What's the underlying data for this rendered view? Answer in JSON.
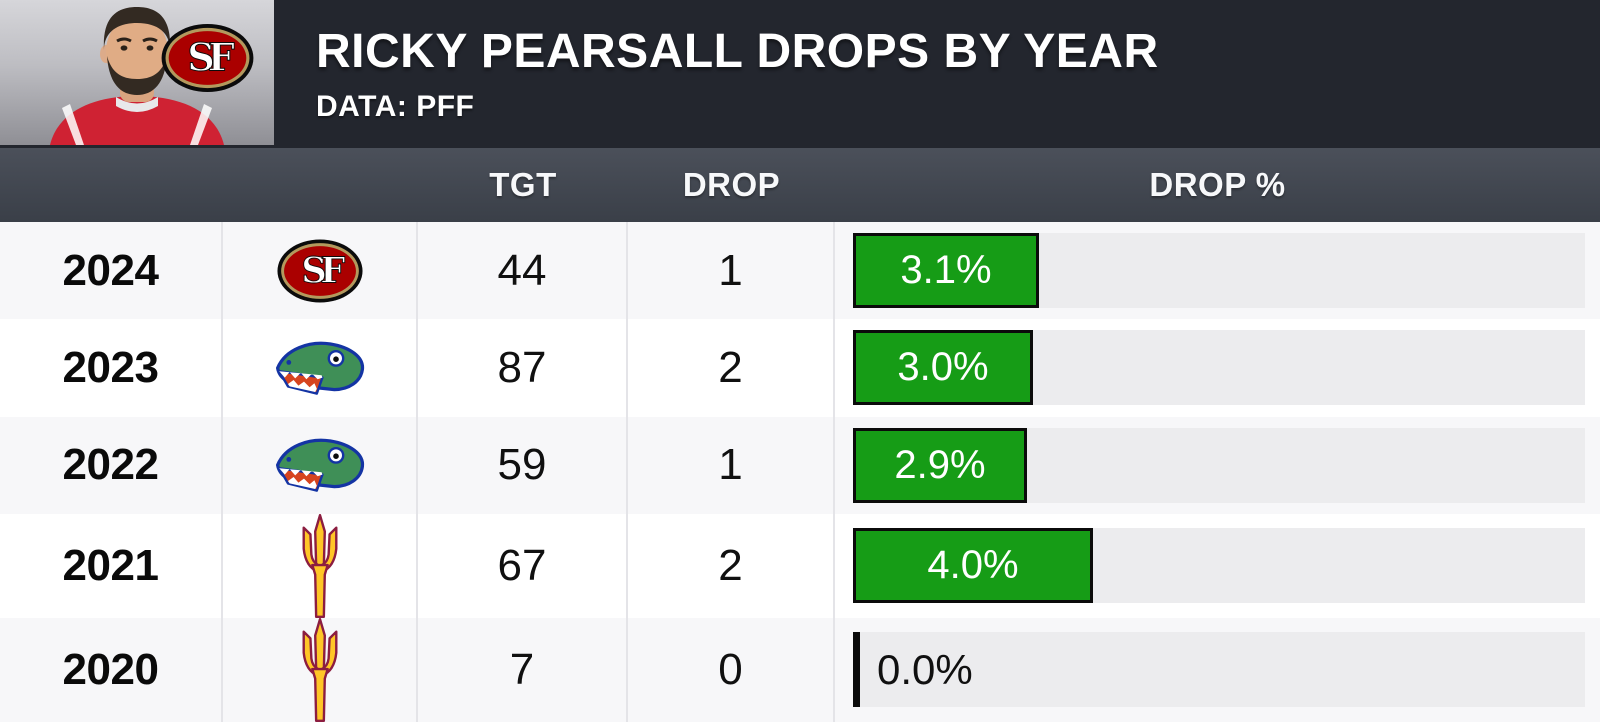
{
  "header": {
    "title": "RICKY PEARSALL DROPS BY YEAR",
    "subtitle": "DATA: PFF"
  },
  "columns": {
    "tgt": "TGT",
    "drop": "DROP",
    "drop_pct": "DROP %"
  },
  "colors": {
    "header_bg": "#23262e",
    "subheader_top": "#4b505a",
    "subheader_bottom": "#3a3f48",
    "bar_green": "#169c16",
    "bar_border": "#0b0b0b",
    "track_gray": "#ececee",
    "row_shaded": "#f7f7f9",
    "row_white": "#ffffff",
    "sf_red": "#aa0000",
    "sf_gold": "#b3995d",
    "gators_green": "#3f8f57",
    "gators_blue": "#1434a4",
    "gators_orange": "#d6441f",
    "asu_gold": "#ffc627",
    "asu_maroon": "#8c1d40"
  },
  "chart_data": {
    "type": "bar",
    "title": "RICKY PEARSALL DROPS BY YEAR",
    "source_note": "DATA: PFF",
    "categories": [
      "2024",
      "2023",
      "2022",
      "2021",
      "2020"
    ],
    "series": [
      {
        "name": "TGT",
        "values": [
          44,
          87,
          59,
          67,
          7
        ]
      },
      {
        "name": "DROP",
        "values": [
          1,
          2,
          1,
          2,
          0
        ]
      },
      {
        "name": "DROP %",
        "values": [
          3.1,
          3.0,
          2.9,
          4.0,
          0.0
        ]
      }
    ],
    "bar_series": "DROP %",
    "bar_axis_max": 12.2,
    "bar_orientation": "horizontal",
    "legend_position": "none",
    "grid": false
  },
  "table": {
    "rows": [
      {
        "year": "2024",
        "team_logo": "sf-49ers",
        "tgt": "44",
        "drop": "1",
        "drop_pct": 3.1,
        "drop_pct_label": "3.1%"
      },
      {
        "year": "2023",
        "team_logo": "florida-gators",
        "tgt": "87",
        "drop": "2",
        "drop_pct": 3.0,
        "drop_pct_label": "3.0%"
      },
      {
        "year": "2022",
        "team_logo": "florida-gators",
        "tgt": "59",
        "drop": "1",
        "drop_pct": 2.9,
        "drop_pct_label": "2.9%"
      },
      {
        "year": "2021",
        "team_logo": "arizona-state",
        "tgt": "67",
        "drop": "2",
        "drop_pct": 4.0,
        "drop_pct_label": "4.0%"
      },
      {
        "year": "2020",
        "team_logo": "arizona-state",
        "tgt": "7",
        "drop": "0",
        "drop_pct": 0.0,
        "drop_pct_label": "0.0%"
      }
    ]
  }
}
